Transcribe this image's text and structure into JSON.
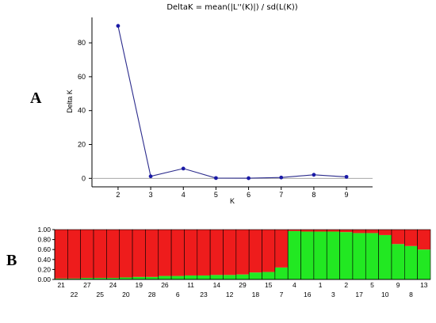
{
  "figure": {
    "panel_a_label": "A",
    "panel_b_label": "B"
  },
  "colors": {
    "line": "#2b2b8c",
    "marker": "#1a1aa6",
    "cluster_red": "#ee1c1c",
    "cluster_green": "#22e822",
    "bar_border": "#8b0000"
  },
  "chart_data": [
    {
      "type": "line",
      "title": "DeltaK = mean(|L''(K)|) / sd(L(K))",
      "xlabel": "K",
      "ylabel": "Delta K",
      "x": [
        2,
        3,
        4,
        5,
        6,
        7,
        8,
        9
      ],
      "y": [
        90,
        1.2,
        5.8,
        0.2,
        0.1,
        0.5,
        2.1,
        0.9
      ],
      "xlim": [
        1.2,
        9.8
      ],
      "ylim": [
        -5,
        95
      ],
      "yticks": [
        0,
        20,
        40,
        60,
        80
      ],
      "xticks": [
        2,
        3,
        4,
        5,
        6,
        7,
        8,
        9
      ],
      "reference_line_y": 0
    },
    {
      "type": "bar",
      "stacked": true,
      "ylim": [
        0,
        1
      ],
      "yticks": [
        "0.00",
        "0.20",
        "0.40",
        "0.60",
        "0.80",
        "1.00"
      ],
      "categories": [
        "21",
        "22",
        "27",
        "25",
        "24",
        "20",
        "19",
        "28",
        "26",
        "6",
        "11",
        "23",
        "14",
        "12",
        "29",
        "18",
        "15",
        "7",
        "4",
        "16",
        "1",
        "3",
        "2",
        "17",
        "5",
        "10",
        "9",
        "8",
        "13"
      ],
      "series": [
        {
          "values": [
            0.02,
            0.02,
            0.03,
            0.03,
            0.03,
            0.04,
            0.05,
            0.05,
            0.07,
            0.07,
            0.08,
            0.08,
            0.09,
            0.09,
            0.1,
            0.14,
            0.15,
            0.24,
            0.97,
            0.96,
            0.96,
            0.96,
            0.95,
            0.93,
            0.93,
            0.89,
            0.71,
            0.67,
            0.6
          ]
        },
        {
          "values": [
            0.98,
            0.98,
            0.97,
            0.97,
            0.97,
            0.96,
            0.95,
            0.95,
            0.93,
            0.93,
            0.92,
            0.92,
            0.91,
            0.91,
            0.9,
            0.86,
            0.85,
            0.76,
            0.03,
            0.04,
            0.04,
            0.04,
            0.05,
            0.07,
            0.07,
            0.11,
            0.29,
            0.33,
            0.4
          ]
        }
      ]
    }
  ]
}
